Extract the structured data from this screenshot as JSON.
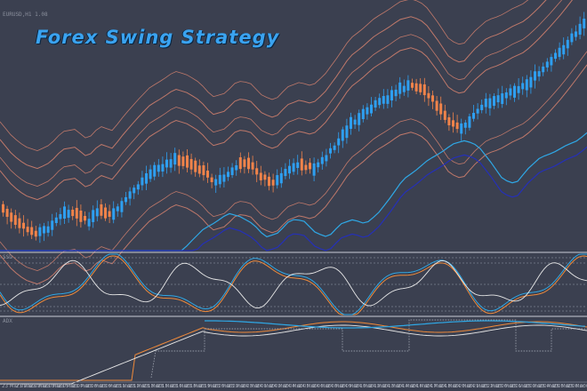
{
  "chart_title": "Forex Swing Strategy",
  "colors": {
    "background": "#3b4050",
    "bull_candle": "#2e9ff0",
    "bear_candle": "#f0834a",
    "envelope_band": "#d7836f",
    "signal_line_blue": "#2fa8e6",
    "signal_line_navy": "#2530b8",
    "oscillator_white": "#e8e8e8",
    "oscillator_orange": "#f08a3a",
    "oscillator_blue": "#2fa8e6"
  },
  "time_axis": {
    "labels": [
      "23 Mar 01:00",
      "23 Mar 02:00",
      "23 Mar 03:00",
      "23 Mar 05:00",
      "23 Mar 07:00",
      "23 Mar 08:00",
      "23 Mar 09:00",
      "23 Mar 11:00",
      "23 Mar 12:00",
      "23 Mar 13:00",
      "23 Mar 15:00",
      "23 Mar 16:00",
      "23 Mar 18:00",
      "23 Mar 19:00",
      "23 Mar 20:00",
      "23 Mar 22:00",
      "23 Mar 23:00",
      "24 Mar 01:00",
      "24 Mar 02:00",
      "24 Mar 04:00",
      "24 Mar 05:00",
      "24 Mar 06:00",
      "24 Mar 08:00",
      "24 Mar 09:00",
      "24 Mar 10:00",
      "24 Mar 12:00",
      "24 Mar 13:00",
      "24 Mar 14:00",
      "24 Mar 16:00",
      "24 Mar 17:00",
      "24 Mar 18:00",
      "24 Mar 20:00",
      "24 Mar 21:00",
      "24 Mar 22:00",
      "25 Mar 00:00",
      "25 Mar 01:00",
      "25 Mar 02:00",
      "25 Mar 04:00",
      "25 Mar 05:00",
      "25 Mar 06:00",
      "25 Mar 08:00"
    ]
  },
  "chart_data": {
    "type": "candlestick",
    "price_trend": [
      232,
      248,
      258,
      262,
      255,
      240,
      238,
      250,
      236,
      242,
      225,
      210,
      196,
      188,
      178,
      182,
      190,
      205,
      200,
      185,
      186,
      200,
      205,
      190,
      185,
      190,
      178,
      160,
      140,
      130,
      118,
      110,
      100,
      96,
      102,
      120,
      140,
      145,
      128,
      115,
      110,
      102,
      96,
      84,
      70,
      55,
      38,
      20
    ]
  }
}
